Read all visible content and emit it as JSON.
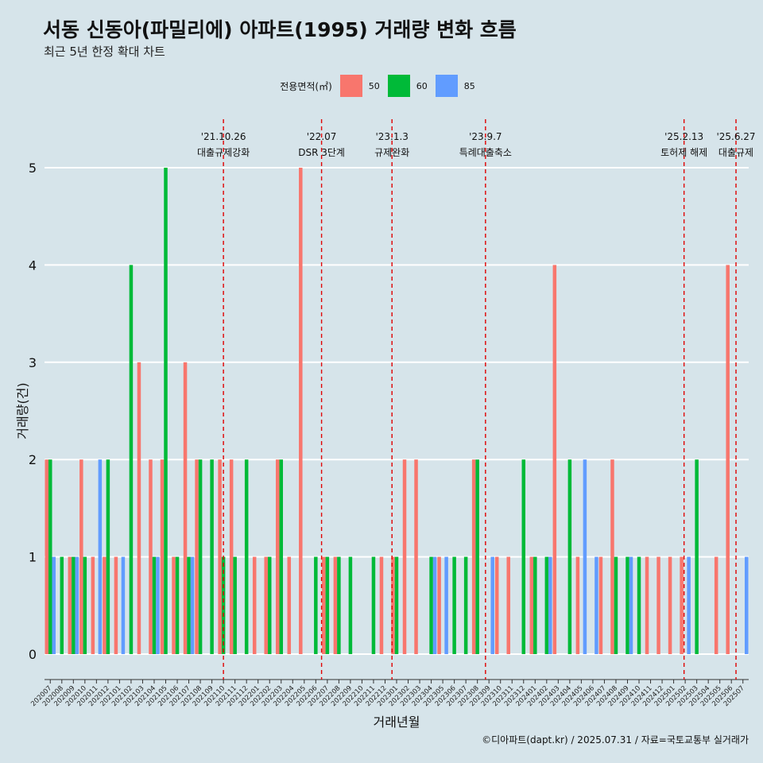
{
  "colors": {
    "s50": "#f8766d",
    "s60": "#00ba38",
    "s85": "#619cff",
    "bg": "#d6e4ea",
    "event": "#e00000"
  },
  "chart_data": {
    "type": "bar",
    "title": "서동 신동아(파밀리에) 아파트(1995) 거래량 변화 흐름",
    "subtitle": "최근 5년 한정 확대 차트",
    "xlabel": "거래년월",
    "ylabel": "거래량(건)",
    "ylim": [
      0,
      5
    ],
    "yticks": [
      0,
      1,
      2,
      3,
      4,
      5
    ],
    "legend_title": "전용면적(㎡)",
    "legend_position": "top",
    "grid": true,
    "categories": [
      "202007",
      "202008",
      "202009",
      "202010",
      "202011",
      "202012",
      "202101",
      "202102",
      "202103",
      "202104",
      "202105",
      "202106",
      "202107",
      "202108",
      "202109",
      "202110",
      "202111",
      "202112",
      "202201",
      "202202",
      "202203",
      "202204",
      "202205",
      "202206",
      "202207",
      "202208",
      "202209",
      "202210",
      "202211",
      "202212",
      "202301",
      "202302",
      "202303",
      "202304",
      "202305",
      "202306",
      "202307",
      "202308",
      "202309",
      "202310",
      "202311",
      "202312",
      "202401",
      "202402",
      "202403",
      "202404",
      "202405",
      "202406",
      "202407",
      "202408",
      "202409",
      "202410",
      "202411",
      "202412",
      "202501",
      "202502",
      "202503",
      "202504",
      "202505",
      "202506",
      "202507"
    ],
    "series": [
      {
        "name": "50",
        "values": [
          2,
          0,
          1,
          2,
          1,
          1,
          1,
          0,
          3,
          2,
          2,
          1,
          3,
          2,
          0,
          2,
          2,
          0,
          1,
          1,
          2,
          1,
          5,
          0,
          1,
          1,
          0,
          0,
          0,
          1,
          1,
          2,
          2,
          0,
          1,
          0,
          0,
          2,
          0,
          1,
          1,
          0,
          1,
          0,
          4,
          0,
          1,
          0,
          1,
          2,
          0,
          0,
          1,
          1,
          1,
          1,
          0,
          0,
          1,
          4,
          0
        ]
      },
      {
        "name": "60",
        "values": [
          2,
          1,
          1,
          1,
          0,
          2,
          0,
          4,
          0,
          1,
          5,
          1,
          1,
          2,
          2,
          1,
          1,
          2,
          0,
          1,
          2,
          0,
          0,
          1,
          1,
          1,
          1,
          0,
          1,
          0,
          1,
          0,
          0,
          1,
          0,
          1,
          1,
          2,
          0,
          0,
          0,
          2,
          1,
          1,
          0,
          2,
          0,
          0,
          0,
          1,
          1,
          1,
          0,
          0,
          0,
          0,
          2,
          0,
          0,
          0,
          0
        ]
      },
      {
        "name": "85",
        "values": [
          1,
          0,
          1,
          0,
          2,
          0,
          1,
          0,
          0,
          1,
          0,
          0,
          1,
          0,
          0,
          0,
          0,
          0,
          0,
          0,
          0,
          0,
          0,
          0,
          0,
          0,
          0,
          0,
          0,
          0,
          0,
          0,
          0,
          1,
          1,
          0,
          0,
          0,
          1,
          0,
          0,
          0,
          0,
          1,
          0,
          0,
          2,
          1,
          0,
          0,
          1,
          0,
          0,
          0,
          0,
          1,
          0,
          0,
          0,
          0,
          1
        ]
      }
    ],
    "events": [
      {
        "date": "'21.10.26",
        "label": "대출규제강화",
        "month": "202110",
        "pos": 0.5
      },
      {
        "date": "'22.07",
        "label": "DSR 3단계",
        "month": "202207",
        "pos": 0.0
      },
      {
        "date": "'23.1.3",
        "label": "규제완화",
        "month": "202301",
        "pos": 0.1
      },
      {
        "date": "'23.9.7",
        "label": "특례대출축소",
        "month": "202309",
        "pos": 0.2
      },
      {
        "date": "'25.2.13",
        "label": "토허제 해제",
        "month": "202502",
        "pos": 0.4
      },
      {
        "date": "'25.6.27",
        "label": "대출규제",
        "month": "202506",
        "pos": 0.9
      }
    ]
  },
  "caption": "©디아파트(dapt.kr) / 2025.07.31 / 자료=국토교통부 실거래가"
}
